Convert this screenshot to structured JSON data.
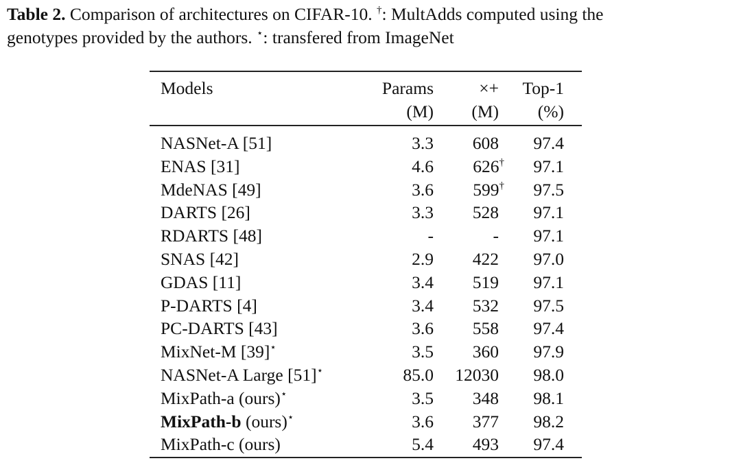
{
  "caption": {
    "label": "Table 2.",
    "text1": "Comparison of architectures on CIFAR-10. ",
    "dagger": "†",
    "text2": ": MultAdds computed using the",
    "text3": "genotypes provided by the authors. ",
    "star": "⋆",
    "text4": ": transfered from ImageNet"
  },
  "table": {
    "header": [
      [
        "Models"
      ],
      [
        "Params",
        "(M)"
      ],
      [
        "×+",
        "(M)"
      ],
      [
        "Top-1",
        "(%)"
      ]
    ],
    "rows": [
      {
        "name": "NASNet-A [51]",
        "params": "3.3",
        "madds": "608",
        "top1": "97.4"
      },
      {
        "name": "ENAS [31]",
        "params": "4.6",
        "madds": "626",
        "madds_sup": "†",
        "top1": "97.1"
      },
      {
        "name": "MdeNAS [49]",
        "params": "3.6",
        "madds": "599",
        "madds_sup": "†",
        "top1": "97.5"
      },
      {
        "name": "DARTS [26]",
        "params": "3.3",
        "madds": "528",
        "top1": "97.1"
      },
      {
        "name": "RDARTS [48]",
        "params": "-",
        "madds": "-",
        "top1": "97.1"
      },
      {
        "name": "SNAS [42]",
        "params": "2.9",
        "madds": "422",
        "top1": "97.0"
      },
      {
        "name": "GDAS [11]",
        "params": "3.4",
        "madds": "519",
        "top1": "97.1"
      },
      {
        "name": "P-DARTS [4]",
        "params": "3.4",
        "madds": "532",
        "top1": "97.5"
      },
      {
        "name": "PC-DARTS [43]",
        "params": "3.6",
        "madds": "558",
        "top1": "97.4"
      },
      {
        "name": "MixNet-M [39]",
        "name_sup": "⋆",
        "params": "3.5",
        "madds": "360",
        "top1": "97.9"
      },
      {
        "name": "NASNet-A Large [51]",
        "name_sup": "⋆",
        "params": "85.0",
        "madds": "12030",
        "top1": "98.0"
      },
      {
        "name": "MixPath-a (ours)",
        "name_sup": "⋆",
        "params": "3.5",
        "madds": "348",
        "top1": "98.1"
      },
      {
        "name": "MixPath-b",
        "bold": true,
        "suffix": " (ours)",
        "name_sup": "⋆",
        "params": "3.6",
        "madds": "377",
        "top1": "98.2"
      },
      {
        "name": "MixPath-c (ours)",
        "params": "5.4",
        "madds": "493",
        "top1": "97.4"
      }
    ]
  }
}
